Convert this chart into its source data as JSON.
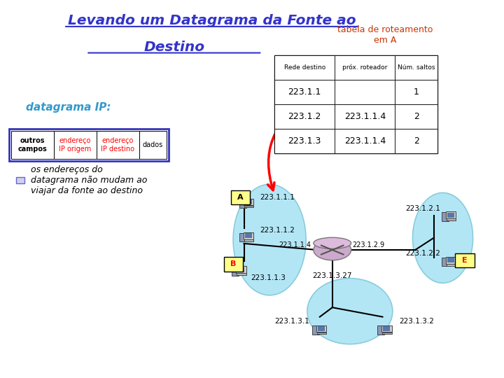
{
  "title_line1": "Levando um Datagrama da Fonte ao",
  "title_line2": "Destino",
  "title_color": "#3333cc",
  "background_color": "#ffffff",
  "subtitle_text": "tabela de roteamento\nem A",
  "subtitle_color": "#cc3300",
  "table_headers": [
    "Rede destino",
    "próx. roteador",
    "Núm. saltos"
  ],
  "table_rows": [
    [
      "223.1.1",
      "",
      "1"
    ],
    [
      "223.1.2",
      "223.1.1.4",
      "2"
    ],
    [
      "223.1.3",
      "223.1.1.4",
      "2"
    ]
  ],
  "datagrama_label": "datagrama IP:",
  "datagrama_color": "#3399cc",
  "packet_fields": [
    "outros\ncampos",
    "endereço\nIP origem",
    "endereço\nIP destino",
    "dados"
  ],
  "bullet_text": "os endereços do\ndatagrama não mudam ao\nviajar da fonte ao destino",
  "bullet_color": "#6666cc",
  "cloud_color": "#b3e6f5",
  "cloud_edge": "#88ccdd"
}
